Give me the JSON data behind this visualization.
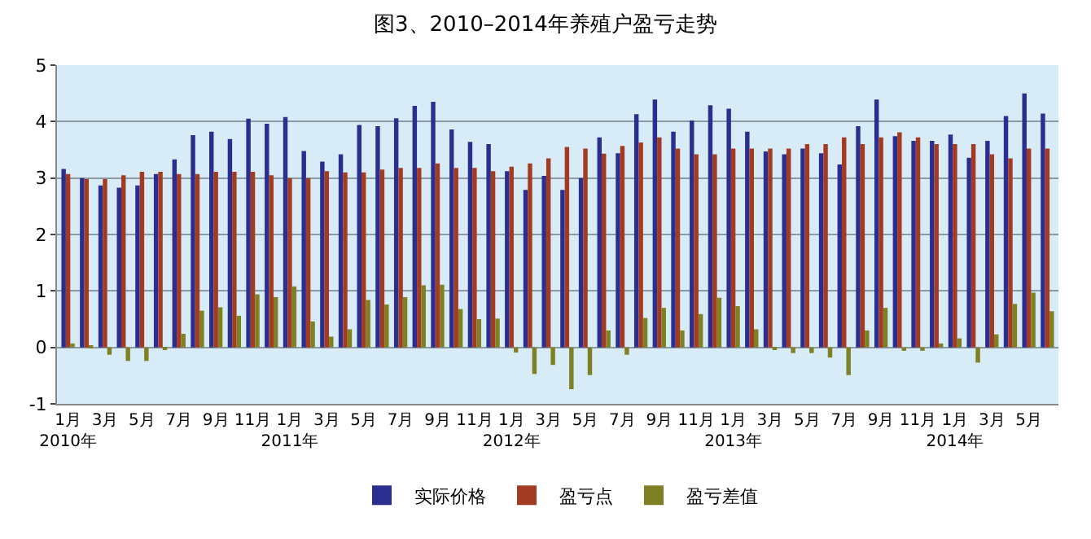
{
  "chart_data": {
    "type": "bar",
    "title": "图3、2010–2014年养殖户盈亏走势",
    "categories": [
      "1月\n2010年",
      null,
      "3月",
      null,
      "5月",
      null,
      "7月",
      null,
      "9月",
      null,
      "11月",
      null,
      "1月\n2011年",
      null,
      "3月",
      null,
      "5月",
      null,
      "7月",
      null,
      "9月",
      null,
      "11月",
      null,
      "1月\n2012年",
      null,
      "3月",
      null,
      "5月",
      null,
      "7月",
      null,
      "9月",
      null,
      "11月",
      null,
      "1月\n2013年",
      null,
      "3月",
      null,
      "5月",
      null,
      "7月",
      null,
      "9月",
      null,
      "11月",
      null,
      "1月\n2014年",
      null,
      "3月",
      null,
      "5月",
      null
    ],
    "series": [
      {
        "name": "实际价格",
        "color": "#2b2e8f",
        "values": [
          3.16,
          3.0,
          2.87,
          2.83,
          2.87,
          3.07,
          3.33,
          3.76,
          3.82,
          3.69,
          4.05,
          3.96,
          4.08,
          3.48,
          3.29,
          3.42,
          3.94,
          3.92,
          4.06,
          4.28,
          4.35,
          3.86,
          3.64,
          3.6,
          3.12,
          2.79,
          3.04,
          2.79,
          3.0,
          3.72,
          3.44,
          4.13,
          4.39,
          3.82,
          4.02,
          4.29,
          4.23,
          3.82,
          3.47,
          3.42,
          3.52,
          3.44,
          3.24,
          3.92,
          4.39,
          3.74,
          3.66,
          3.66,
          3.77,
          3.36,
          3.66,
          4.1,
          4.5,
          4.14
        ]
      },
      {
        "name": "盈亏点",
        "color": "#a33b22",
        "values": [
          3.07,
          2.98,
          2.98,
          3.05,
          3.11,
          3.11,
          3.07,
          3.07,
          3.11,
          3.11,
          3.11,
          3.05,
          3.0,
          3.0,
          3.12,
          3.1,
          3.1,
          3.15,
          3.18,
          3.18,
          3.26,
          3.18,
          3.18,
          3.12,
          3.2,
          3.26,
          3.35,
          3.55,
          3.52,
          3.43,
          3.57,
          3.63,
          3.72,
          3.52,
          3.42,
          3.42,
          3.52,
          3.52,
          3.52,
          3.52,
          3.6,
          3.6,
          3.72,
          3.6,
          3.72,
          3.81,
          3.72,
          3.6,
          3.6,
          3.6,
          3.42,
          3.35,
          3.52,
          3.52
        ]
      },
      {
        "name": "盈亏差值",
        "color": "#7f7f24",
        "values": [
          0.07,
          0.02,
          -0.13,
          -0.24,
          -0.24,
          -0.03,
          0.24,
          0.65,
          0.71,
          0.56,
          0.94,
          0.89,
          1.08,
          0.46,
          0.19,
          0.32,
          0.84,
          0.76,
          0.89,
          1.1,
          1.11,
          0.68,
          0.5,
          0.51,
          -0.09,
          -0.47,
          -0.31,
          -0.74,
          -0.49,
          0.3,
          -0.13,
          0.52,
          0.7,
          0.3,
          0.59,
          0.88,
          0.73,
          0.32,
          -0.04,
          -0.1,
          -0.1,
          -0.18,
          -0.49,
          0.3,
          0.7,
          -0.06,
          -0.06,
          0.07,
          0.16,
          -0.27,
          0.23,
          0.77,
          0.97,
          0.64
        ]
      }
    ],
    "ylim": [
      -1,
      5
    ],
    "yticks": [
      -1,
      0,
      1,
      2,
      3,
      4,
      5
    ],
    "grid": "y",
    "legend": "bottom"
  }
}
